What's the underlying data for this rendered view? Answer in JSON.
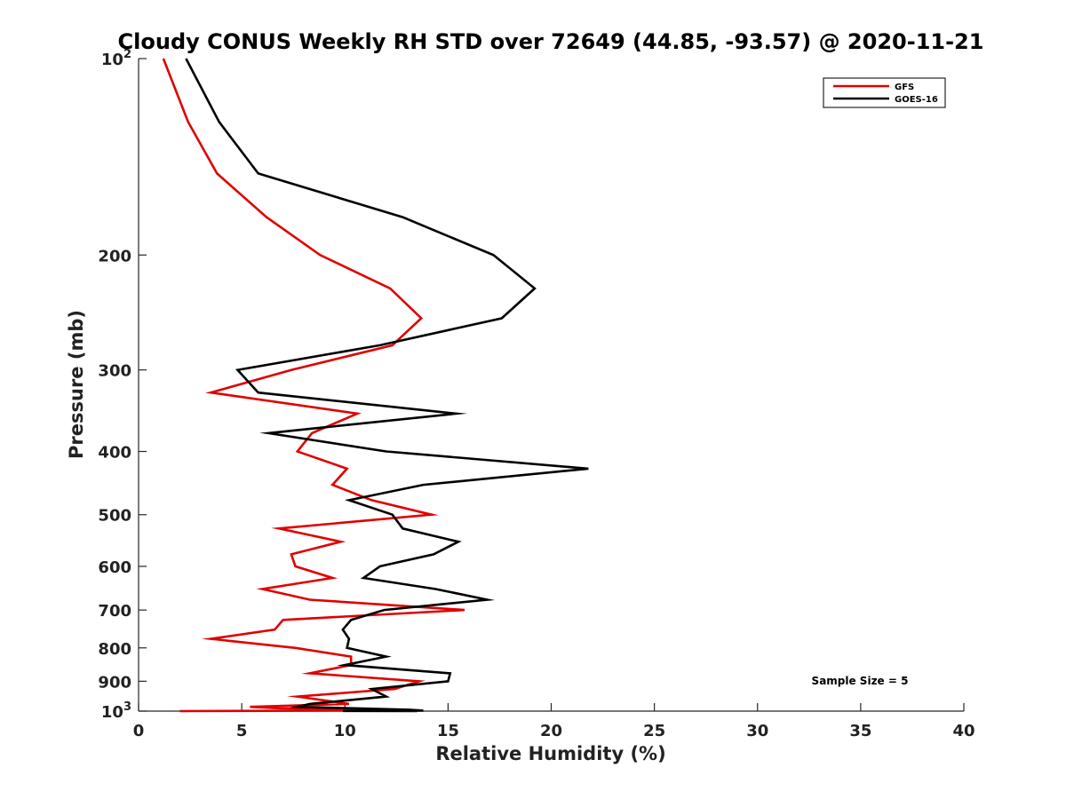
{
  "chart_data": {
    "type": "line",
    "title": "Cloudy CONUS Weekly RH STD over 72649 (44.85, -93.57) @ 2020-11-21",
    "xlabel": "Relative Humidity (%)",
    "ylabel": "Pressure (mb)",
    "xlim": [
      0,
      40
    ],
    "ylim": [
      100,
      1000
    ],
    "y_scale": "log",
    "y_reversed": true,
    "grid": false,
    "legend_position": "top-right",
    "x_ticks": [
      "0",
      "5",
      "10",
      "15",
      "20",
      "25",
      "30",
      "35",
      "40"
    ],
    "y_ticks": [
      {
        "value": 100,
        "base": "10",
        "exp": "2"
      },
      {
        "value": 200,
        "label": "200"
      },
      {
        "value": 300,
        "label": "300"
      },
      {
        "value": 400,
        "label": "400"
      },
      {
        "value": 500,
        "label": "500"
      },
      {
        "value": 600,
        "label": "600"
      },
      {
        "value": 700,
        "label": "700"
      },
      {
        "value": 800,
        "label": "800"
      },
      {
        "value": 900,
        "label": "900"
      },
      {
        "value": 1000,
        "base": "10",
        "exp": "3"
      }
    ],
    "annotation": "Sample Size = 5",
    "series": [
      {
        "name": "GFS",
        "color": "#e00000",
        "points": [
          [
            1.2,
            100
          ],
          [
            2.4,
            125
          ],
          [
            3.8,
            150
          ],
          [
            6.2,
            175
          ],
          [
            8.8,
            200
          ],
          [
            12.2,
            225
          ],
          [
            13.7,
            250
          ],
          [
            12.3,
            275
          ],
          [
            7.4,
            300
          ],
          [
            3.5,
            325
          ],
          [
            10.6,
            350
          ],
          [
            8.4,
            375
          ],
          [
            7.7,
            400
          ],
          [
            10.1,
            425
          ],
          [
            9.4,
            450
          ],
          [
            11.3,
            475
          ],
          [
            14.2,
            500
          ],
          [
            6.8,
            525
          ],
          [
            9.8,
            550
          ],
          [
            7.4,
            575
          ],
          [
            7.6,
            600
          ],
          [
            9.4,
            625
          ],
          [
            6.0,
            650
          ],
          [
            8.3,
            675
          ],
          [
            15.8,
            700
          ],
          [
            7.0,
            725
          ],
          [
            6.6,
            750
          ],
          [
            3.5,
            775
          ],
          [
            7.6,
            800
          ],
          [
            10.3,
            825
          ],
          [
            10.3,
            850
          ],
          [
            8.3,
            875
          ],
          [
            13.6,
            900
          ],
          [
            12.4,
            925
          ],
          [
            7.7,
            950
          ],
          [
            10.2,
            975
          ],
          [
            5.4,
            985
          ],
          [
            6.8,
            990
          ],
          [
            11.8,
            995
          ],
          [
            11.2,
            998
          ],
          [
            2.0,
            1000
          ]
        ]
      },
      {
        "name": "GOES-16",
        "color": "#000000",
        "points": [
          [
            2.3,
            100
          ],
          [
            3.9,
            125
          ],
          [
            5.8,
            150
          ],
          [
            12.8,
            175
          ],
          [
            17.2,
            200
          ],
          [
            19.2,
            225
          ],
          [
            17.6,
            250
          ],
          [
            11.7,
            275
          ],
          [
            4.8,
            300
          ],
          [
            5.8,
            325
          ],
          [
            15.4,
            350
          ],
          [
            6.3,
            375
          ],
          [
            12.0,
            400
          ],
          [
            21.8,
            425
          ],
          [
            13.8,
            450
          ],
          [
            10.2,
            475
          ],
          [
            12.3,
            500
          ],
          [
            12.8,
            525
          ],
          [
            15.5,
            550
          ],
          [
            14.3,
            575
          ],
          [
            11.7,
            600
          ],
          [
            10.9,
            625
          ],
          [
            14.4,
            650
          ],
          [
            16.9,
            675
          ],
          [
            11.9,
            700
          ],
          [
            10.3,
            725
          ],
          [
            9.9,
            750
          ],
          [
            10.2,
            775
          ],
          [
            10.1,
            800
          ],
          [
            12.0,
            825
          ],
          [
            10.0,
            850
          ],
          [
            15.1,
            875
          ],
          [
            15.0,
            900
          ],
          [
            11.3,
            925
          ],
          [
            12.0,
            950
          ],
          [
            8.3,
            975
          ],
          [
            7.7,
            985
          ],
          [
            10.4,
            990
          ],
          [
            13.1,
            995
          ],
          [
            13.8,
            998
          ],
          [
            10.8,
            999
          ],
          [
            9.9,
            999.5
          ],
          [
            13.5,
            1000
          ]
        ]
      }
    ]
  }
}
